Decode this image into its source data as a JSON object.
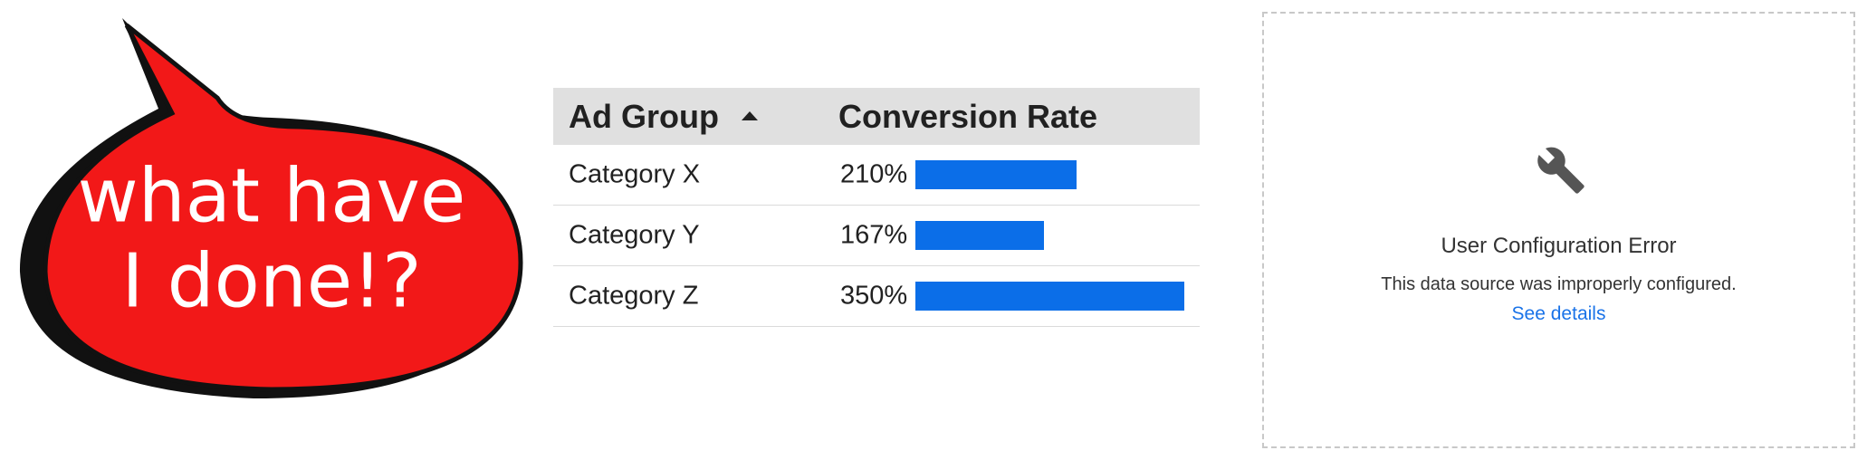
{
  "bubble": {
    "lines": [
      "what have",
      "I done!?"
    ]
  },
  "table": {
    "columns": [
      "Ad Group",
      "Conversion Rate"
    ],
    "rows": [
      {
        "label": "Category X",
        "value": 210,
        "value_label": "210%"
      },
      {
        "label": "Category Y",
        "value": 167,
        "value_label": "167%"
      },
      {
        "label": "Category Z",
        "value": 350,
        "value_label": "350%"
      }
    ]
  },
  "error_panel": {
    "title": "User Configuration Error",
    "message": "This data source was improperly configured.",
    "link": "See details"
  }
}
